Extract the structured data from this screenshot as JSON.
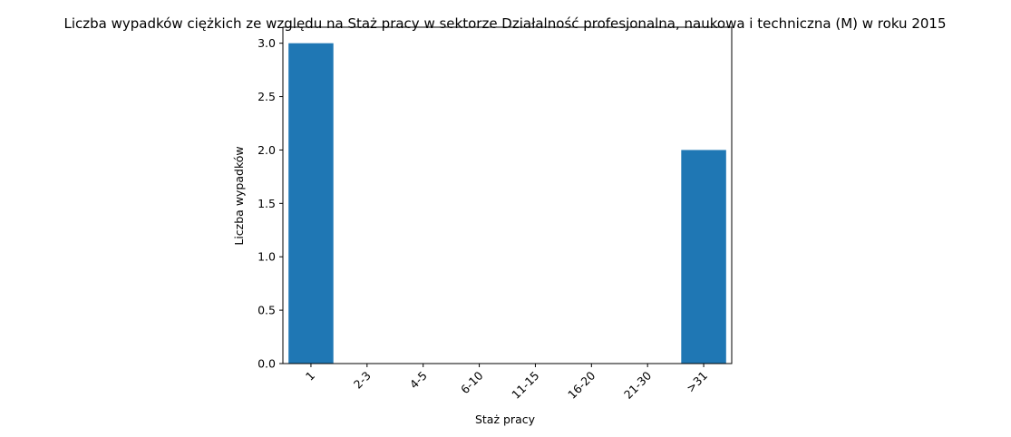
{
  "chart_data": {
    "type": "bar",
    "title": "Liczba wypadków ciężkich ze względu na Staż pracy w sektorze Działalność profesjonalna, naukowa i techniczna  (M)  w roku 2015",
    "xlabel": "Staż pracy",
    "ylabel": "Liczba wypadków",
    "categories": [
      "1",
      "2-3",
      "4-5",
      "6-10",
      "11-15",
      "16-20",
      "21-30",
      ">31"
    ],
    "values": [
      3,
      0,
      0,
      0,
      0,
      0,
      0,
      2
    ],
    "ylim": [
      0,
      3.15
    ],
    "yticks": [
      0.0,
      0.5,
      1.0,
      1.5,
      2.0,
      2.5,
      3.0
    ],
    "ytick_labels": [
      "0.0",
      "0.5",
      "1.0",
      "1.5",
      "2.0",
      "2.5",
      "3.0"
    ],
    "bar_color": "#1f77b4",
    "grid": false,
    "legend": "none"
  }
}
